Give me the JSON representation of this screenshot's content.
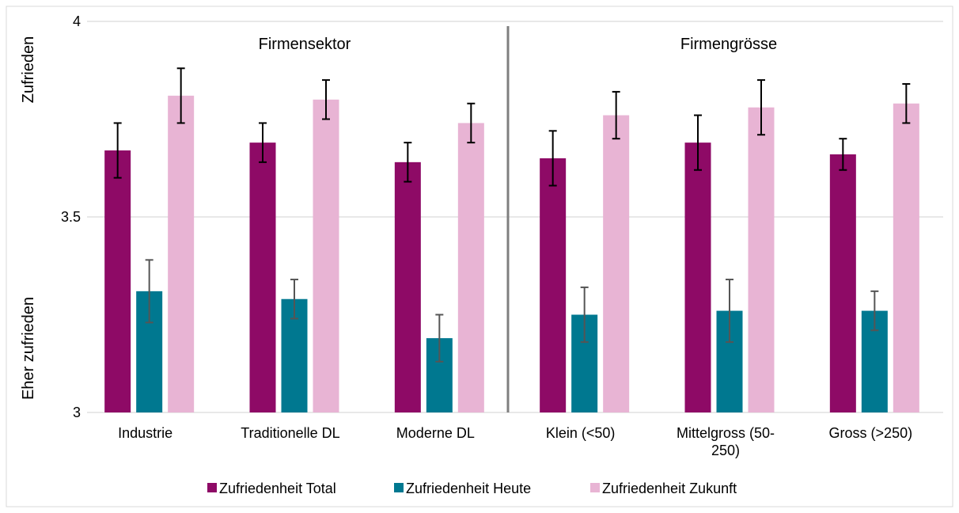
{
  "chart_data": {
    "type": "bar",
    "y_label_low": "Eher zufrieden",
    "y_label_high": "Zufrieden",
    "group_labels": [
      "Firmensektor",
      "Firmengrösse"
    ],
    "categories": [
      "Industrie",
      "Traditionelle DL",
      "Moderne DL",
      "Klein (<50)",
      "Mittelgross (50-250)",
      "Gross (>250)"
    ],
    "series": [
      {
        "name": "Zufriedenheit Total",
        "color": "#8e0a66",
        "error_color": "#000000",
        "values": [
          3.67,
          3.69,
          3.64,
          3.65,
          3.69,
          3.66
        ],
        "errors": [
          0.07,
          0.05,
          0.05,
          0.07,
          0.07,
          0.04
        ]
      },
      {
        "name": "Zufriedenheit Heute",
        "color": "#007890",
        "error_color": "#555555",
        "values": [
          3.31,
          3.29,
          3.19,
          3.25,
          3.26,
          3.26
        ],
        "errors": [
          0.08,
          0.05,
          0.06,
          0.07,
          0.08,
          0.05
        ]
      },
      {
        "name": "Zufriedenheit Zukunft",
        "color": "#e8b4d4",
        "error_color": "#000000",
        "values": [
          3.81,
          3.8,
          3.74,
          3.76,
          3.78,
          3.79
        ],
        "errors": [
          0.07,
          0.05,
          0.05,
          0.06,
          0.07,
          0.05
        ]
      }
    ],
    "ylim": [
      3,
      4
    ],
    "yticks": [
      3,
      3.5,
      4
    ],
    "grid": true
  }
}
